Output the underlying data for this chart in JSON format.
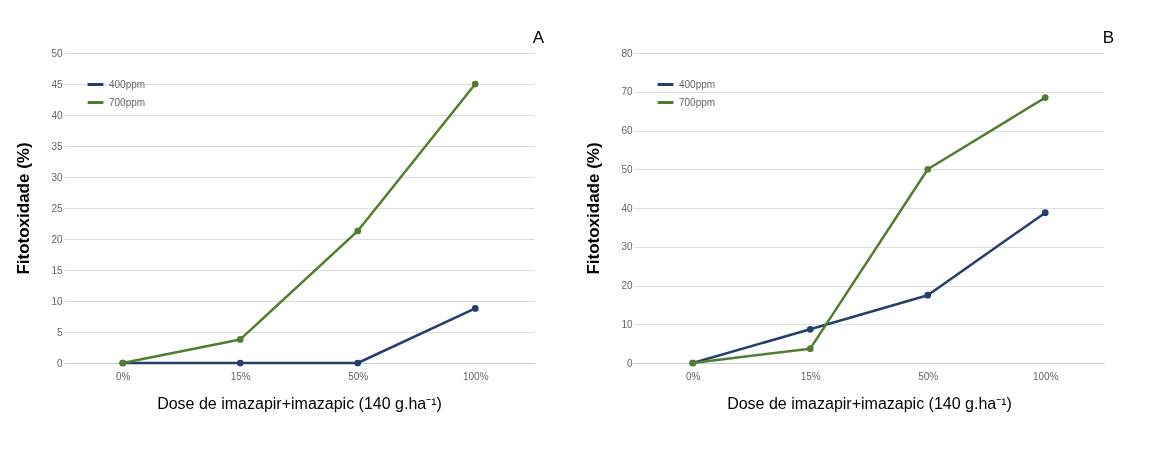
{
  "chart_data": [
    {
      "type": "line",
      "annotations": [
        "A"
      ],
      "xlabel": "Dose de imazapir+imazapic (140 g.ha⁻¹)",
      "ylabel": "Fitotoxidade (%)",
      "categories": [
        "0%",
        "15%",
        "50%",
        "100%"
      ],
      "series": [
        {
          "name": "400ppm",
          "color": "#243f6b",
          "values": [
            0,
            0,
            0,
            8.8
          ]
        },
        {
          "name": "700ppm",
          "color": "#4f7f2e",
          "values": [
            0,
            3.8,
            21.3,
            45
          ]
        }
      ],
      "ylim": [
        0,
        50
      ],
      "yticks": [
        0,
        5,
        10,
        15,
        20,
        25,
        30,
        35,
        40,
        45,
        50
      ],
      "grid": "y",
      "legend": "top left",
      "marker": "circle",
      "line_style": "solid"
    },
    {
      "type": "line",
      "annotations": [
        "B"
      ],
      "xlabel": "Dose de imazapir+imazapic (140 g.ha⁻¹)",
      "ylabel": "Fitotoxidade (%)",
      "categories": [
        "0%",
        "15%",
        "50%",
        "100%"
      ],
      "series": [
        {
          "name": "400ppm",
          "color": "#243f6b",
          "values": [
            0,
            8.7,
            17.5,
            38.8
          ]
        },
        {
          "name": "700ppm",
          "color": "#4f7f2e",
          "values": [
            0,
            3.7,
            50,
            68.5
          ]
        }
      ],
      "ylim": [
        0,
        80
      ],
      "yticks": [
        0,
        10,
        20,
        30,
        40,
        50,
        60,
        70,
        80
      ],
      "grid": "y",
      "legend": "top left",
      "marker": "circle",
      "line_style": "solid"
    }
  ]
}
